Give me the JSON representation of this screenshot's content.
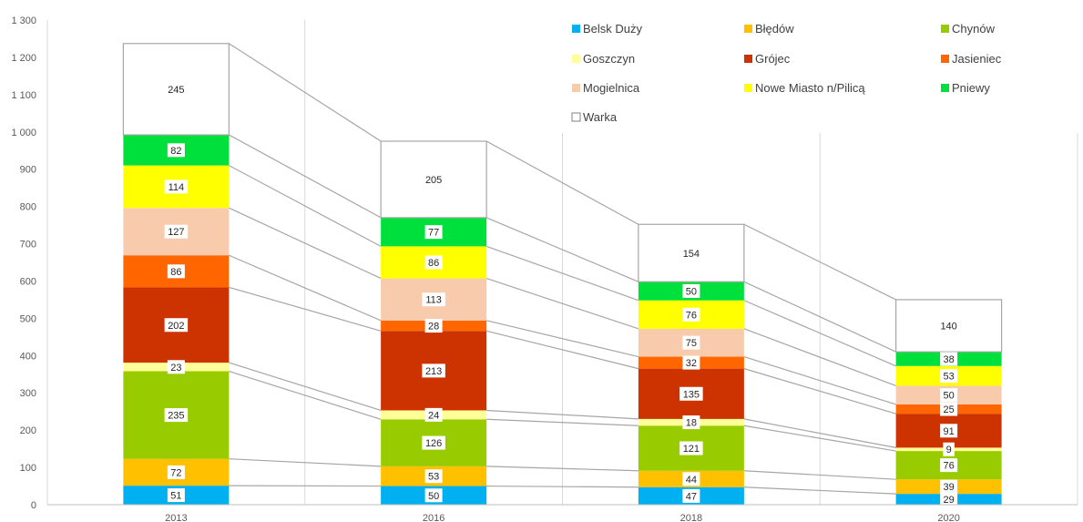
{
  "chart_data": {
    "type": "bar",
    "stacked": true,
    "categories": [
      "2013",
      "2016",
      "2018",
      "2020"
    ],
    "ylim": [
      0,
      1300
    ],
    "yticks": [
      0,
      100,
      200,
      300,
      400,
      500,
      600,
      700,
      800,
      900,
      1000,
      1100,
      1200,
      1300
    ],
    "ytick_labels": [
      "0",
      "100",
      "200",
      "300",
      "400",
      "500",
      "600",
      "700",
      "800",
      "900",
      "1 000",
      "1 100",
      "1 200",
      "1 300"
    ],
    "grid": "vertical",
    "legend_position": "top-right",
    "series": [
      {
        "name": "Belsk Duży",
        "color": "#00b0f0",
        "values": [
          51,
          50,
          47,
          29
        ]
      },
      {
        "name": "Błędów",
        "color": "#ffc000",
        "values": [
          72,
          53,
          44,
          39
        ]
      },
      {
        "name": "Chynów",
        "color": "#99cc00",
        "values": [
          235,
          126,
          121,
          76
        ]
      },
      {
        "name": "Goszczyn",
        "color": "#ffff99",
        "values": [
          23,
          24,
          18,
          9
        ]
      },
      {
        "name": "Grójec",
        "color": "#cc3300",
        "values": [
          202,
          213,
          135,
          91
        ]
      },
      {
        "name": "Jasieniec",
        "color": "#ff6600",
        "values": [
          86,
          28,
          32,
          25
        ]
      },
      {
        "name": "Mogielnica",
        "color": "#f8cbad",
        "values": [
          127,
          113,
          75,
          50
        ]
      },
      {
        "name": "Nowe Miasto n/Pilicą",
        "color": "#ffff00",
        "values": [
          114,
          86,
          76,
          53
        ]
      },
      {
        "name": "Pniewy",
        "color": "#00e03c",
        "values": [
          82,
          77,
          50,
          38
        ]
      },
      {
        "name": "Warka",
        "color": "#ffffff",
        "values": [
          245,
          205,
          154,
          140
        ]
      }
    ]
  }
}
